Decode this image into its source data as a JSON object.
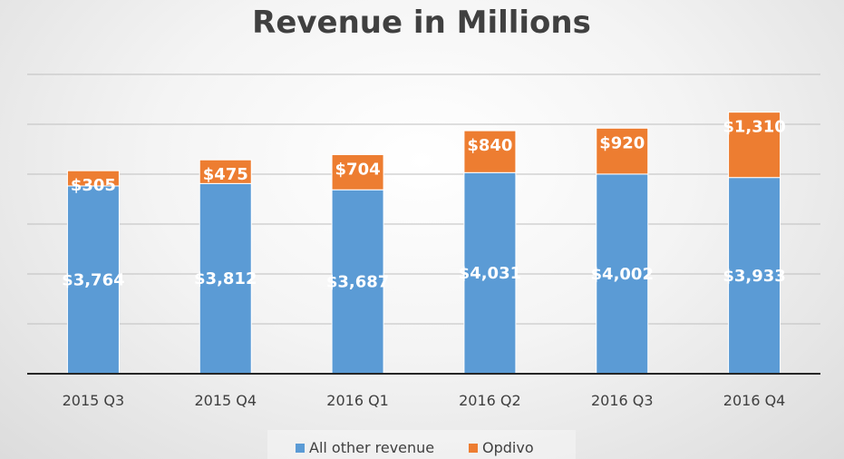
{
  "chart_data": {
    "type": "bar",
    "stacked": true,
    "title": "Revenue in Millions",
    "categories": [
      "2015 Q3",
      "2015 Q4",
      "2016 Q1",
      "2016 Q2",
      "2016 Q3",
      "2016 Q4"
    ],
    "series": [
      {
        "name": "All other revenue",
        "color": "#5b9bd5",
        "values": [
          3764,
          3812,
          3687,
          4031,
          4002,
          3933
        ],
        "labels": [
          "$3,764",
          "$3,812",
          "$3,687",
          "$4,031",
          "$4,002",
          "$3,933"
        ]
      },
      {
        "name": "Opdivo",
        "color": "#ed7d31",
        "values": [
          305,
          475,
          704,
          840,
          920,
          1310
        ],
        "labels": [
          "$305",
          "$475",
          "$704",
          "$840",
          "$920",
          "$1,310"
        ]
      }
    ],
    "ylim": [
      0,
      6000
    ],
    "grid": true,
    "legend": "bottom"
  }
}
